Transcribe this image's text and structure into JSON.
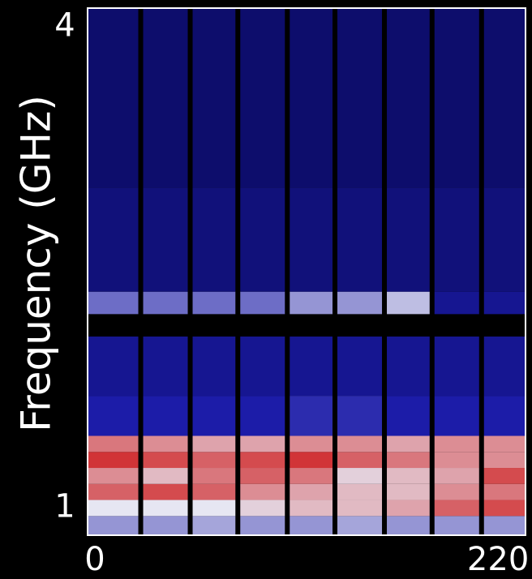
{
  "chart_data": {
    "type": "heatmap",
    "ylabel": "Frequency (GHz)",
    "xlim": [
      -4,
      235
    ],
    "xticks": [
      0,
      220
    ],
    "ylim": [
      0.83,
      4.12
    ],
    "yticks": [
      1,
      4
    ],
    "x_bins": [
      -4,
      25,
      52,
      78,
      105,
      131,
      158,
      184,
      211,
      235
    ],
    "y_bins": [
      0.83,
      0.95,
      1.05,
      1.15,
      1.25,
      1.35,
      1.45,
      1.7,
      2.07,
      2.21,
      2.35,
      3.0,
      4.12
    ],
    "z": [
      [
        0.4,
        0.4,
        0.42,
        0.4,
        0.4,
        0.42,
        0.4,
        0.4,
        0.4
      ],
      [
        0.5,
        0.5,
        0.5,
        0.55,
        0.6,
        0.6,
        0.65,
        0.8,
        0.85
      ],
      [
        0.8,
        0.85,
        0.8,
        0.7,
        0.65,
        0.6,
        0.6,
        0.7,
        0.75
      ],
      [
        0.7,
        0.6,
        0.75,
        0.8,
        0.75,
        0.55,
        0.6,
        0.65,
        0.85
      ],
      [
        0.9,
        0.85,
        0.8,
        0.85,
        0.9,
        0.8,
        0.75,
        0.7,
        0.7
      ],
      [
        0.75,
        0.7,
        0.65,
        0.65,
        0.7,
        0.7,
        0.65,
        0.7,
        0.7
      ],
      [
        0.25,
        0.25,
        0.25,
        0.25,
        0.27,
        0.27,
        0.25,
        0.25,
        0.25
      ],
      [
        0.2,
        0.2,
        0.2,
        0.2,
        0.2,
        0.2,
        0.2,
        0.2,
        0.2
      ],
      [
        null,
        null,
        null,
        null,
        null,
        null,
        null,
        null,
        null
      ],
      [
        0.35,
        0.35,
        0.35,
        0.35,
        0.4,
        0.4,
        0.45,
        0.2,
        0.2
      ],
      [
        0.15,
        0.15,
        0.15,
        0.15,
        0.15,
        0.15,
        0.15,
        0.15,
        0.15
      ],
      [
        0.12,
        0.12,
        0.12,
        0.12,
        0.12,
        0.12,
        0.12,
        0.12,
        0.12
      ]
    ],
    "colorscale": [
      [
        0,
        "#000035"
      ],
      [
        0.25,
        "#1c1ca8"
      ],
      [
        0.5,
        "#e6e6f2"
      ],
      [
        1,
        "#cc0808"
      ]
    ]
  }
}
